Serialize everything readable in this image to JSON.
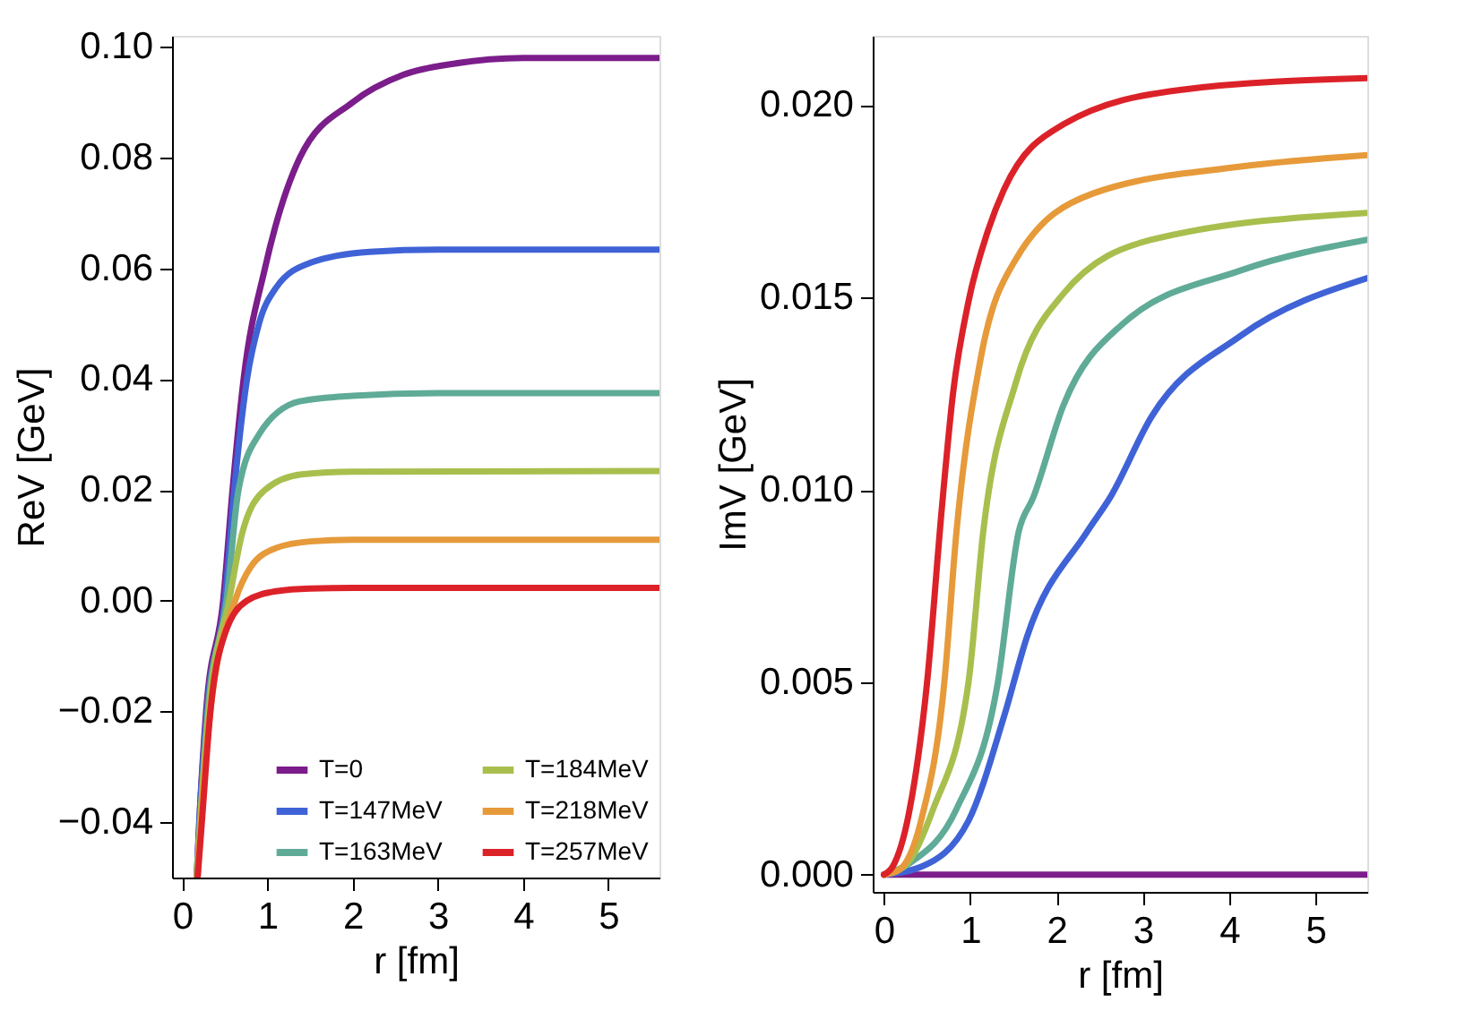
{
  "chart_data": [
    {
      "type": "line",
      "xlabel": "r [fm]",
      "ylabel": "ReV [GeV]",
      "xlim": [
        -0.12,
        5.6
      ],
      "ylim": [
        -0.05,
        0.102
      ],
      "xticks": [
        0,
        1,
        2,
        3,
        4,
        5
      ],
      "yticks": [
        {
          "value": -0.04,
          "label": "−0.04"
        },
        {
          "value": -0.02,
          "label": "−0.02"
        },
        {
          "value": 0,
          "label": "0.00"
        },
        {
          "value": 0.02,
          "label": "0.02"
        },
        {
          "value": 0.04,
          "label": "0.04"
        },
        {
          "value": 0.06,
          "label": "0.06"
        },
        {
          "value": 0.08,
          "label": "0.08"
        },
        {
          "value": 0.1,
          "label": "0.10"
        }
      ],
      "grid": false,
      "legend": "bottom right",
      "marker": "none",
      "line_style": "solid",
      "series": [
        {
          "name": "T=0",
          "color": "#7b1d8a",
          "x": [
            0.17,
            0.2,
            0.28,
            0.48,
            0.59,
            0.72,
            0.97,
            1.38,
            2.0,
            2.6,
            3.2,
            4.0,
            5.6
          ],
          "values": [
            -0.05,
            -0.04,
            -0.02,
            0.0,
            0.02,
            0.04,
            0.06,
            0.08,
            0.09,
            0.095,
            0.097,
            0.098,
            0.098
          ]
        },
        {
          "name": "T=147MeV",
          "color": "#3f63d6",
          "x": [
            0.17,
            0.2,
            0.29,
            0.5,
            0.61,
            0.76,
            0.9,
            1.1,
            1.5,
            2.2,
            3.0,
            5.6
          ],
          "values": [
            -0.05,
            -0.04,
            -0.02,
            0.0,
            0.02,
            0.04,
            0.05,
            0.0565,
            0.061,
            0.063,
            0.0634,
            0.0634
          ]
        },
        {
          "name": "T=163MeV",
          "color": "#5fab98",
          "x": [
            0.17,
            0.21,
            0.3,
            0.52,
            0.66,
            0.9,
            1.38,
            2.0,
            3.0,
            5.6
          ],
          "values": [
            -0.05,
            -0.04,
            -0.02,
            0.0,
            0.02,
            0.03,
            0.036,
            0.037,
            0.0375,
            0.0375
          ]
        },
        {
          "name": "T=184MeV",
          "color": "#a8bf4e",
          "x": [
            0.17,
            0.21,
            0.31,
            0.55,
            0.7,
            0.97,
            1.4,
            2.0,
            5.6
          ],
          "values": [
            -0.05,
            -0.04,
            -0.02,
            0.0,
            0.012,
            0.02,
            0.0228,
            0.0233,
            0.0234
          ]
        },
        {
          "name": "T=218MeV",
          "color": "#e69a3a",
          "x": [
            0.18,
            0.22,
            0.33,
            0.62,
            0.8,
            1.1,
            1.5,
            2.0,
            5.6
          ],
          "values": [
            -0.05,
            -0.04,
            -0.02,
            0.0,
            0.006,
            0.0095,
            0.0107,
            0.011,
            0.011
          ]
        },
        {
          "name": "T=257MeV",
          "color": "#dc2229",
          "x": [
            0.18,
            0.23,
            0.33,
            0.5,
            0.76,
            1.1,
            1.5,
            2.0,
            5.6
          ],
          "values": [
            -0.05,
            -0.04,
            -0.02,
            -0.006,
            0.0,
            0.0017,
            0.0022,
            0.0023,
            0.0023
          ]
        }
      ]
    },
    {
      "type": "line",
      "xlabel": "r [fm]",
      "ylabel": "ImV [GeV]",
      "xlim": [
        -0.13,
        5.6
      ],
      "ylim": [
        -0.00045,
        0.0218
      ],
      "xticks": [
        0,
        1,
        2,
        3,
        4,
        5
      ],
      "yticks": [
        {
          "value": 0,
          "label": "0.000"
        },
        {
          "value": 0.005,
          "label": "0.005"
        },
        {
          "value": 0.01,
          "label": "0.010"
        },
        {
          "value": 0.015,
          "label": "0.015"
        },
        {
          "value": 0.02,
          "label": "0.020"
        }
      ],
      "grid": false,
      "legend": false,
      "marker": "none",
      "line_style": "solid",
      "series": [
        {
          "color": "#7b1d8a",
          "x": [
            0,
            5.6
          ],
          "values": [
            0,
            0
          ]
        },
        {
          "color": "#3f63d6",
          "x": [
            0,
            0.43,
            0.98,
            1.39,
            1.66,
            2.35,
            2.62,
            3.1,
            4.13,
            5.6
          ],
          "values": [
            0,
            0.0002,
            0.0014,
            0.0041,
            0.0062,
            0.0089,
            0.0098,
            0.0119,
            0.014,
            0.0155
          ]
        },
        {
          "color": "#5fab98",
          "x": [
            0,
            0.3,
            0.84,
            1.32,
            1.56,
            1.73,
            2.08,
            2.76,
            4.13,
            5.6
          ],
          "values": [
            0,
            0.0003,
            0.0017,
            0.005,
            0.0089,
            0.0098,
            0.0122,
            0.0143,
            0.0157,
            0.0165
          ]
        },
        {
          "color": "#a8bf4e",
          "x": [
            0,
            0.23,
            0.57,
            0.98,
            1.15,
            1.53,
            2.08,
            3.1,
            5.6
          ],
          "values": [
            0,
            0.0002,
            0.0017,
            0.005,
            0.0089,
            0.0128,
            0.0151,
            0.0165,
            0.0172
          ]
        },
        {
          "color": "#e69a3a",
          "x": [
            0,
            0.16,
            0.43,
            0.7,
            0.84,
            1.12,
            1.53,
            2.42,
            4.13,
            5.6
          ],
          "values": [
            0,
            0.0001,
            0.0014,
            0.005,
            0.0089,
            0.0134,
            0.016,
            0.0177,
            0.0184,
            0.0187
          ]
        },
        {
          "color": "#dc2229",
          "x": [
            0,
            0.1,
            0.29,
            0.5,
            0.67,
            0.8,
            0.98,
            1.2,
            1.39,
            2.08,
            3.45,
            5.6
          ],
          "values": [
            0,
            0.0002,
            0.0016,
            0.005,
            0.0095,
            0.0125,
            0.0149,
            0.0167,
            0.0178,
            0.0195,
            0.0204,
            0.0207
          ]
        }
      ]
    }
  ]
}
